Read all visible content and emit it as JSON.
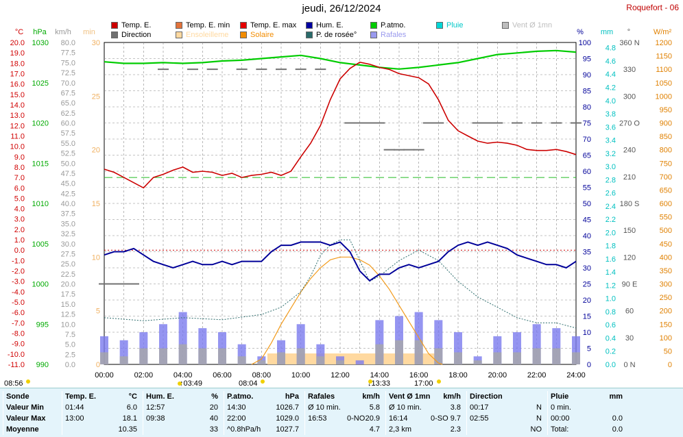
{
  "title": "jeudi, 26/12/2024",
  "station": "Roquefort - 06",
  "colors": {
    "temp": "#cc0000",
    "hum": "#000099",
    "patmo": "#00cc00",
    "dew": "#2a6b6b",
    "solar": "#f29a1a",
    "gust": "#7a7aee",
    "wind": "#a8a8a8",
    "dir": "#707070",
    "sun": "#ffd9a0",
    "pluie": "#00cccc"
  },
  "legend": [
    {
      "label": "Temp. E.",
      "color": "#cc0000"
    },
    {
      "label": "Temp. E. min",
      "color": "#e2733b"
    },
    {
      "label": "Temp. E. max",
      "color": "#e60000"
    },
    {
      "label": "Hum. E.",
      "color": "#0000a0"
    },
    {
      "label": "P.atmo.",
      "color": "#00cc00"
    },
    {
      "label": "Pluie",
      "color": "#00d6d6"
    },
    {
      "label": "Vent Ø 1mn",
      "color": "#bdbdbd"
    },
    {
      "label": "Direction",
      "color": "#707070"
    },
    {
      "label": "Ensoleilleme",
      "color": "#ffd9a0"
    },
    {
      "label": "Solaire",
      "color": "#f28c00"
    },
    {
      "label": "P. de rosée°",
      "color": "#2a6b6b"
    },
    {
      "label": "Rafales",
      "color": "#9a9aee"
    }
  ],
  "axis_units": {
    "temp": "°C",
    "press": "hPa",
    "wind": "km/h",
    "minutes": "min",
    "hum": "%",
    "rain": "mm",
    "dir": "°",
    "solar": "W/m²"
  },
  "axes": {
    "temp": [
      "20.0",
      "19.0",
      "18.0",
      "17.0",
      "16.0",
      "15.0",
      "14.0",
      "13.0",
      "12.0",
      "11.0",
      "10.0",
      "9.0",
      "8.0",
      "7.0",
      "6.0",
      "5.0",
      "4.0",
      "3.0",
      "2.0",
      "1.0",
      "0.0",
      "-1.0",
      "-2.0",
      "-3.0",
      "-4.0",
      "-5.0",
      "-6.0",
      "-7.0",
      "-8.0",
      "-9.0",
      "-10.0",
      "-11.0"
    ],
    "press": [
      "1030",
      "1025",
      "1020",
      "1015",
      "1010",
      "1005",
      "1000",
      "995",
      "990"
    ],
    "wind": [
      "80.0",
      "77.5",
      "75.0",
      "72.5",
      "70.0",
      "67.5",
      "65.0",
      "62.5",
      "60.0",
      "57.5",
      "55.0",
      "52.5",
      "50.0",
      "47.5",
      "45.0",
      "42.5",
      "40.0",
      "37.5",
      "35.0",
      "32.5",
      "30.0",
      "27.5",
      "25.0",
      "22.5",
      "20.0",
      "17.5",
      "15.0",
      "12.5",
      "10.0",
      "7.5",
      "5.0",
      "2.5",
      "0.0"
    ],
    "minutes": [
      "30",
      "25",
      "20",
      "15",
      "10",
      "5",
      "0"
    ],
    "hum": [
      "100",
      "95",
      "90",
      "85",
      "80",
      "75",
      "70",
      "65",
      "60",
      "55",
      "50",
      "45",
      "40",
      "35",
      "30",
      "25",
      "20",
      "15",
      "10",
      "5",
      "0"
    ],
    "rain": [
      "4.8",
      "4.6",
      "4.4",
      "4.2",
      "4.0",
      "3.8",
      "3.6",
      "3.4",
      "3.2",
      "3.0",
      "2.8",
      "2.6",
      "2.4",
      "2.2",
      "2.0",
      "1.8",
      "1.6",
      "1.4",
      "1.2",
      "1.0",
      "0.8",
      "0.6",
      "0.4",
      "0.2",
      "0.0"
    ],
    "dir": [
      "360 N",
      "330",
      "300",
      "270 O",
      "240",
      "210",
      "180 S",
      "150",
      "120",
      "90 E",
      "60",
      "30",
      "0 N"
    ],
    "solar": [
      "1200",
      "1150",
      "1100",
      "1050",
      "1000",
      "950",
      "900",
      "850",
      "800",
      "750",
      "700",
      "650",
      "600",
      "550",
      "500",
      "450",
      "400",
      "350",
      "300",
      "250",
      "200",
      "150",
      "100",
      "50",
      "0"
    ],
    "x": [
      "00:00",
      "02:00",
      "04:00",
      "06:00",
      "08:00",
      "10:00",
      "12:00",
      "14:00",
      "16:00",
      "18:00",
      "20:00",
      "22:00",
      "24:00"
    ]
  },
  "time_markers": [
    {
      "label": "08:56",
      "pos": "left"
    },
    {
      "label": "↑03:49",
      "pos": "moonrise"
    },
    {
      "label": "08:04",
      "pos": "sunrise"
    },
    {
      "label": "↓13:33",
      "pos": "moonset"
    },
    {
      "label": "17:00",
      "pos": "sunset"
    }
  ],
  "chart_data": {
    "type": "line",
    "title": "jeudi, 26/12/2024",
    "x_label": "",
    "xlim": [
      0,
      24
    ],
    "grid": true,
    "series": [
      {
        "name": "Temp. E.",
        "unit": "°C",
        "x": [
          0,
          0.5,
          1,
          1.5,
          2,
          2.5,
          3,
          3.5,
          4,
          4.5,
          5,
          5.5,
          6,
          6.5,
          7,
          7.5,
          8,
          8.5,
          9,
          9.5,
          10,
          10.5,
          11,
          11.5,
          12,
          12.5,
          13,
          13.5,
          14,
          14.5,
          15,
          15.5,
          16,
          16.5,
          17,
          17.5,
          18,
          18.5,
          19,
          19.5,
          20,
          20.5,
          21,
          21.5,
          22,
          22.5,
          23,
          23.5,
          24
        ],
        "y": [
          7.8,
          7.5,
          7.0,
          6.5,
          6.0,
          7.0,
          7.3,
          7.7,
          8.0,
          7.5,
          7.6,
          7.5,
          7.2,
          7.4,
          7.0,
          7.2,
          7.3,
          7.5,
          7.2,
          7.6,
          9.0,
          10.3,
          12.0,
          14.5,
          16.5,
          17.5,
          18.1,
          17.9,
          17.6,
          17.4,
          17.0,
          16.8,
          16.6,
          16.0,
          14.5,
          12.5,
          11.5,
          11.0,
          10.5,
          10.3,
          10.4,
          10.3,
          10.1,
          9.7,
          9.6,
          9.6,
          9.7,
          9.5,
          9.2
        ]
      },
      {
        "name": "Hum. E.",
        "unit": "%",
        "x": [
          0,
          0.5,
          1,
          1.5,
          2,
          2.5,
          3,
          3.5,
          4,
          4.5,
          5,
          5.5,
          6,
          6.5,
          7,
          7.5,
          8,
          8.5,
          9,
          9.5,
          10,
          10.5,
          11,
          11.5,
          12,
          12.5,
          13,
          13.5,
          14,
          14.5,
          15,
          15.5,
          16,
          16.5,
          17,
          17.5,
          18,
          18.5,
          19,
          19.5,
          20,
          20.5,
          21,
          21.5,
          22,
          22.5,
          23,
          23.5,
          24
        ],
        "y": [
          34,
          35,
          35,
          36,
          34,
          32,
          31,
          30,
          31,
          32,
          31,
          31,
          32,
          31,
          32,
          32,
          32,
          35,
          37,
          37,
          38,
          38,
          38,
          37,
          38,
          35,
          29,
          26,
          28,
          28,
          30,
          31,
          30,
          31,
          32,
          35,
          37,
          38,
          37,
          38,
          37,
          36,
          34,
          33,
          32,
          31,
          31,
          30,
          32
        ]
      },
      {
        "name": "P.atmo.",
        "unit": "hPa",
        "x": [
          0,
          1,
          2,
          3,
          4,
          5,
          6,
          7,
          8,
          9,
          10,
          11,
          12,
          13,
          14,
          15,
          16,
          17,
          18,
          19,
          20,
          21,
          22,
          23,
          24
        ],
        "y": [
          1027.6,
          1027.4,
          1027.4,
          1027.5,
          1027.4,
          1027.5,
          1027.7,
          1027.8,
          1028.0,
          1028.2,
          1028.4,
          1028.0,
          1027.5,
          1027.2,
          1026.9,
          1026.7,
          1026.9,
          1027.2,
          1027.5,
          1028.0,
          1028.5,
          1028.7,
          1028.9,
          1029.0,
          1028.8
        ]
      },
      {
        "name": "P. de rosée°",
        "unit": "°C",
        "x": [
          0,
          2,
          4,
          6,
          8,
          9,
          10,
          10.5,
          11,
          11.5,
          12,
          12.5,
          13,
          13.5,
          14,
          15,
          16,
          17,
          18,
          19,
          20,
          21,
          22,
          23,
          24
        ],
        "y": [
          -6.5,
          -6.8,
          -6.5,
          -6.7,
          -6.2,
          -5.5,
          -4.0,
          -2.5,
          -0.5,
          0.5,
          1.0,
          1.0,
          -1.0,
          -3.0,
          -2.5,
          -1.0,
          0.0,
          -1.0,
          -3.0,
          -4.5,
          -5.5,
          -6.5,
          -7.0,
          -7.0,
          -7.5
        ]
      },
      {
        "name": "Solaire",
        "unit": "W/m²",
        "x": [
          7.5,
          8.0,
          8.5,
          9,
          9.5,
          10,
          10.5,
          11,
          11.5,
          12,
          12.5,
          13,
          13.5,
          14,
          14.5,
          15,
          15.5,
          16,
          16.5,
          17,
          17.2
        ],
        "y": [
          0,
          20,
          80,
          150,
          210,
          270,
          320,
          360,
          390,
          400,
          400,
          390,
          370,
          330,
          280,
          220,
          160,
          100,
          40,
          5,
          0
        ]
      },
      {
        "name": "Rafales",
        "unit": "km/h",
        "kind": "bars",
        "x": [
          0,
          1,
          2,
          3,
          4,
          5,
          6,
          7,
          8,
          9,
          10,
          11,
          12,
          13,
          14,
          15,
          16,
          17,
          18,
          19,
          20,
          21,
          22,
          23,
          24
        ],
        "y": [
          7,
          6,
          8,
          10,
          13,
          9,
          8,
          5,
          2,
          6,
          10,
          5,
          2,
          1,
          11,
          12,
          13,
          11,
          8,
          2,
          7,
          8,
          10,
          9,
          7
        ]
      },
      {
        "name": "Vent Ø 1mn",
        "unit": "km/h",
        "kind": "bars",
        "x": [
          0,
          1,
          2,
          3,
          4,
          5,
          6,
          7,
          8,
          9,
          10,
          11,
          12,
          13,
          14,
          15,
          16,
          17,
          18,
          19,
          20,
          21,
          22,
          23,
          24
        ],
        "y": [
          3,
          2,
          4,
          4,
          5,
          4,
          4,
          2,
          1,
          3,
          4,
          2,
          1,
          0,
          5,
          6,
          6,
          4,
          3,
          1,
          3,
          3,
          4,
          4,
          3
        ]
      },
      {
        "name": "Direction",
        "unit": "°",
        "kind": "segments",
        "x": [
          0,
          0.5,
          1,
          1.5,
          3,
          4.5,
          5.5,
          7,
          8,
          9,
          10,
          11,
          12.5,
          13,
          13.5,
          14,
          14.5,
          15,
          15.5,
          16,
          16.5,
          17,
          19,
          19.5,
          20,
          21,
          22,
          23,
          24
        ],
        "y": [
          90,
          90,
          90,
          90,
          330,
          330,
          330,
          330,
          330,
          330,
          330,
          330,
          270,
          270,
          270,
          270,
          240,
          240,
          240,
          240,
          270,
          270,
          270,
          270,
          270,
          270,
          270,
          270,
          270
        ]
      },
      {
        "name": "Ensoleilleme",
        "unit": "min",
        "kind": "area",
        "x": [
          8.2,
          8.3,
          16.8,
          16.9
        ],
        "y": [
          0,
          1,
          1,
          0
        ]
      }
    ]
  },
  "stats": {
    "headers": [
      "Sonde",
      "Temp. E.",
      "°C",
      "Hum. E.",
      "%",
      "P.atmo.",
      "hPa",
      "Rafales",
      "km/h",
      "Vent Ø 1mn",
      "km/h",
      "Direction",
      "Pluie",
      "mm"
    ],
    "row_labels": [
      "Valeur Min",
      "Valeur Max",
      "Moyenne"
    ],
    "temp": [
      [
        "01:44",
        "6.0"
      ],
      [
        "13:00",
        "18.1"
      ],
      [
        "",
        "10.35"
      ]
    ],
    "hum": [
      [
        "12:57",
        "20"
      ],
      [
        "09:38",
        "40"
      ],
      [
        "",
        "33"
      ]
    ],
    "press": [
      [
        "14:30",
        "1026.7"
      ],
      [
        "22:00",
        "1029.0"
      ],
      [
        "^0.8hPa/h",
        "1027.7"
      ]
    ],
    "gust": [
      [
        "Ø 10 min.",
        "",
        "5.8"
      ],
      [
        "16:53",
        "0-NO",
        "20.9"
      ],
      [
        "",
        "",
        "4.7"
      ]
    ],
    "wind": [
      [
        "Ø 10 min.",
        "3.8"
      ],
      [
        "16:14",
        "0-SO 9.7"
      ],
      [
        "2,3 km",
        "2.3"
      ]
    ],
    "dir": [
      [
        "00:17",
        "N"
      ],
      [
        "02:55",
        "N"
      ],
      [
        "",
        "NO"
      ]
    ],
    "rain": [
      [
        "0 min.",
        ""
      ],
      [
        "00:00",
        "0.0"
      ],
      [
        "Total:",
        "0.0"
      ]
    ]
  }
}
